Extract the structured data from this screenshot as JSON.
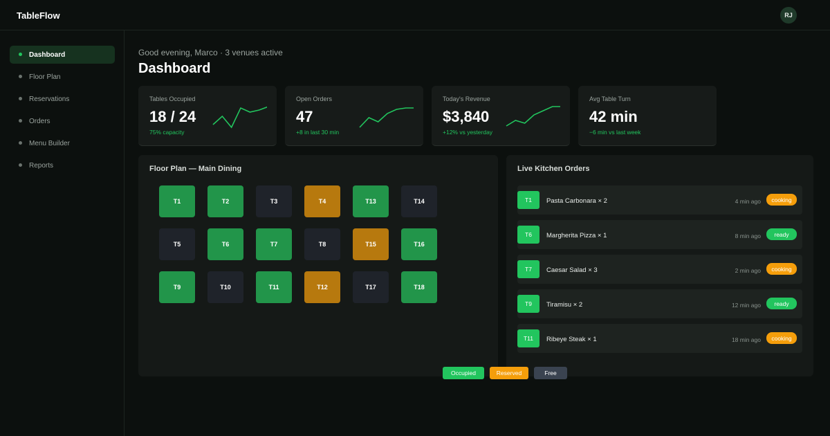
{
  "app": {
    "name": "TableFlow",
    "user_initials": "RJ"
  },
  "sidebar": {
    "items": [
      {
        "label": "Dashboard",
        "active": true
      },
      {
        "label": "Floor Plan",
        "active": false
      },
      {
        "label": "Reservations",
        "active": false
      },
      {
        "label": "Orders",
        "active": false
      },
      {
        "label": "Menu Builder",
        "active": false
      },
      {
        "label": "Reports",
        "active": false
      }
    ]
  },
  "header": {
    "greeting": "Good evening, Marco · 3 venues active",
    "title": "Dashboard"
  },
  "stats": [
    {
      "label": "Tables Occupied",
      "value": "18 / 24",
      "sub": "75% capacity",
      "trend": [
        30,
        18,
        34,
        6,
        12,
        9,
        4
      ]
    },
    {
      "label": "Open Orders",
      "value": "47",
      "sub": "+8 in last 30 min",
      "trend": [
        34,
        20,
        26,
        14,
        8,
        6,
        6
      ]
    },
    {
      "label": "Today's Revenue",
      "value": "$3,840",
      "sub": "+12% vs yesterday",
      "trend": [
        32,
        24,
        28,
        16,
        10,
        4,
        4
      ]
    },
    {
      "label": "Avg Table Turn",
      "value": "42 min",
      "sub": "−6 min vs last week",
      "trend": []
    }
  ],
  "floor_plan": {
    "title": "Floor Plan — Main Dining",
    "rows": [
      [
        {
          "id": "T1",
          "status": "occupied"
        },
        {
          "id": "T2",
          "status": "occupied"
        },
        {
          "id": "T3",
          "status": "free"
        },
        {
          "id": "T4",
          "status": "reserved"
        },
        {
          "id": "T13",
          "status": "occupied"
        },
        {
          "id": "T14",
          "status": "free"
        }
      ],
      [
        {
          "id": "T5",
          "status": "free"
        },
        {
          "id": "T6",
          "status": "occupied"
        },
        {
          "id": "T7",
          "status": "occupied"
        },
        {
          "id": "T8",
          "status": "free"
        },
        {
          "id": "T15",
          "status": "reserved"
        },
        {
          "id": "T16",
          "status": "occupied"
        }
      ],
      [
        {
          "id": "T9",
          "status": "occupied"
        },
        {
          "id": "T10",
          "status": "free"
        },
        {
          "id": "T11",
          "status": "occupied"
        },
        {
          "id": "T12",
          "status": "reserved"
        },
        {
          "id": "T17",
          "status": "free"
        },
        {
          "id": "T18",
          "status": "occupied"
        }
      ]
    ],
    "legend": [
      {
        "label": "Occupied",
        "color": "#22c55e"
      },
      {
        "label": "Reserved",
        "color": "#f59e0b"
      },
      {
        "label": "Free",
        "color": "#3a4350"
      }
    ]
  },
  "kitchen": {
    "title": "Live Kitchen Orders",
    "orders": [
      {
        "table": "T1",
        "item": "Pasta Carbonara × 2",
        "time": "4 min ago",
        "status": "cooking"
      },
      {
        "table": "T6",
        "item": "Margherita Pizza × 1",
        "time": "8 min ago",
        "status": "ready"
      },
      {
        "table": "T7",
        "item": "Caesar Salad × 3",
        "time": "2 min ago",
        "status": "cooking"
      },
      {
        "table": "T9",
        "item": "Tiramisu × 2",
        "time": "12 min ago",
        "status": "ready"
      },
      {
        "table": "T11",
        "item": "Ribeye Steak × 1",
        "time": "18 min ago",
        "status": "cooking"
      }
    ]
  },
  "colors": {
    "accent": "#22c55e",
    "warning": "#f59e0b",
    "background": "#0c100e",
    "card": "#171b19"
  }
}
